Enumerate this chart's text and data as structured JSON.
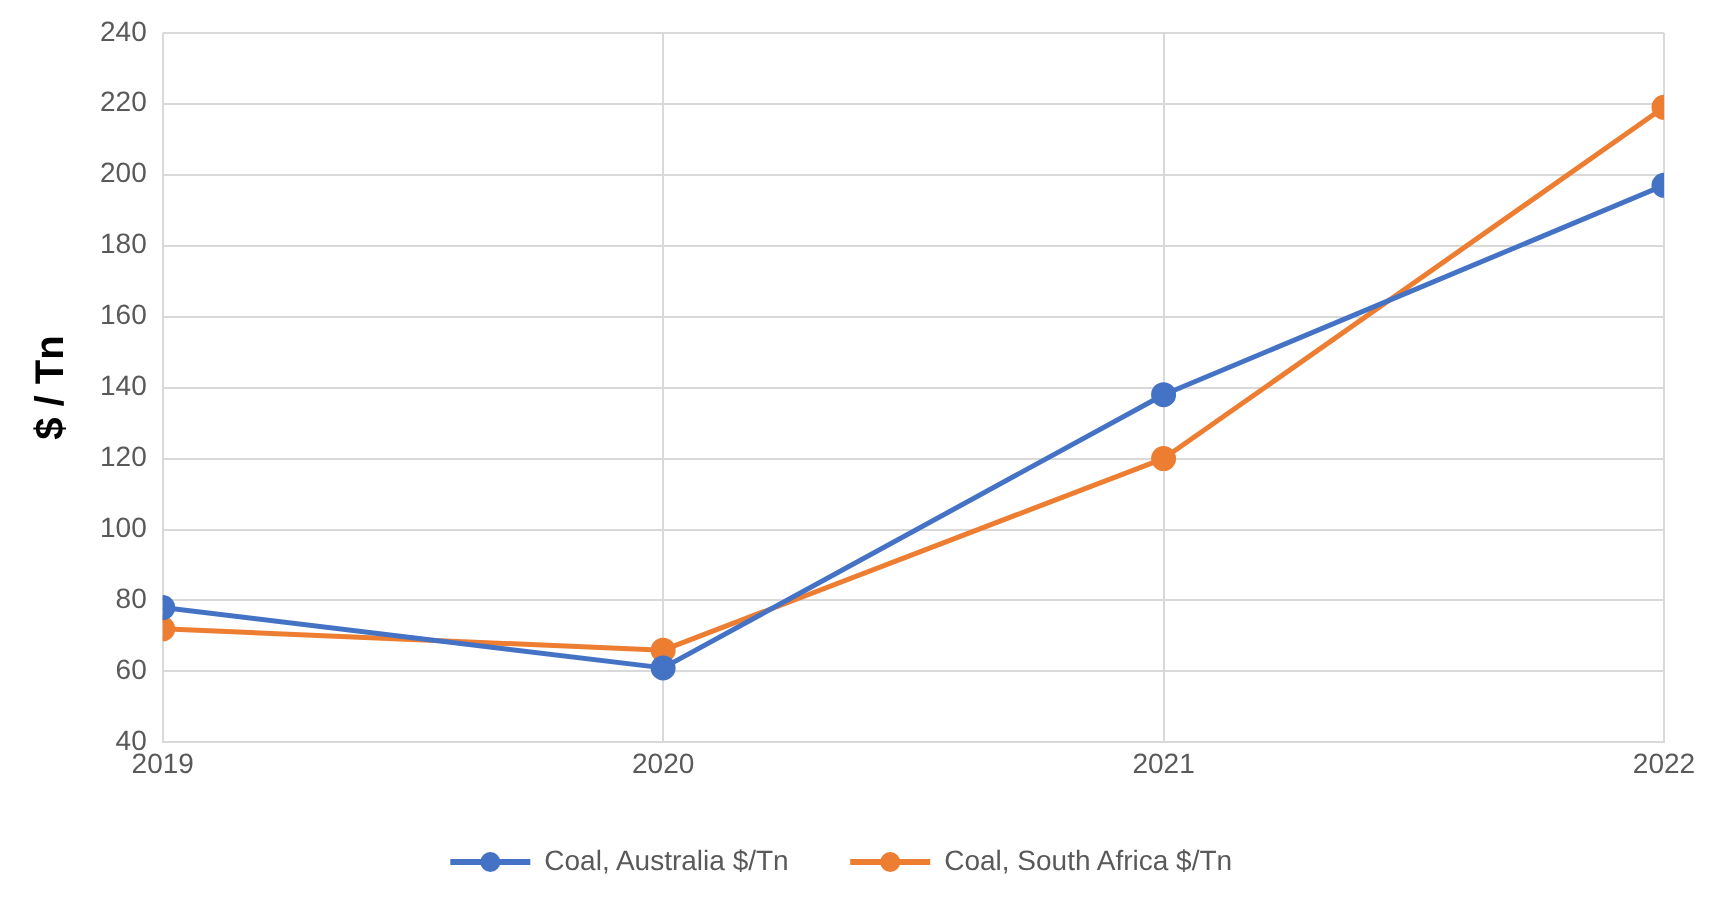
{
  "chart_data": {
    "type": "line",
    "ylabel": "$ / Tn",
    "x": [
      2019,
      2020,
      2021,
      2022
    ],
    "series": [
      {
        "name": "Coal, Australia $/Tn",
        "color": "#4472c4",
        "values": [
          78,
          61,
          138,
          197
        ]
      },
      {
        "name": "Coal, South Africa $/Tn",
        "color": "#ed7d31",
        "values": [
          72,
          66,
          120,
          219
        ]
      }
    ],
    "xlim": [
      2019,
      2022
    ],
    "xticks": [
      2019,
      2020,
      2021,
      2022
    ],
    "ylim": [
      40,
      240
    ],
    "yticks": [
      40,
      60,
      80,
      100,
      120,
      140,
      160,
      180,
      200,
      220,
      240
    ],
    "grid": true,
    "legend": "bottom",
    "marker": "circle",
    "line_style": "solid"
  }
}
